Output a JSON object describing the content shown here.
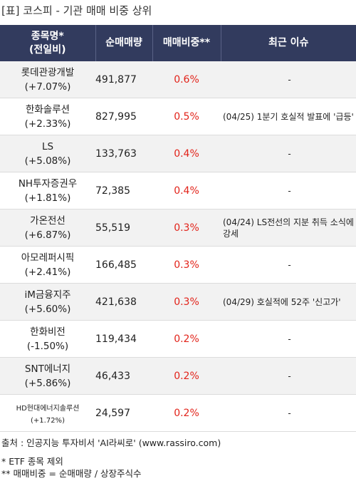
{
  "title": "[표] 코스피 - 기관 매매 비중 상위",
  "headers": {
    "name_line1": "종목명*",
    "name_line2": "(전일비)",
    "volume": "순매매량",
    "ratio": "매매비중**",
    "issue": "최근 이슈"
  },
  "rows": [
    {
      "name": "롯데관광개발",
      "change": "(+7.07%)",
      "volume": "491,877",
      "ratio": "0.6%",
      "issue": "-"
    },
    {
      "name": "한화솔루션",
      "change": "(+2.33%)",
      "volume": "827,995",
      "ratio": "0.5%",
      "issue": "(04/25) 1분기 호실적 발표에 '급등'"
    },
    {
      "name": "LS",
      "change": "(+5.08%)",
      "volume": "133,763",
      "ratio": "0.4%",
      "issue": "-"
    },
    {
      "name": "NH투자증권우",
      "change": "(+1.81%)",
      "volume": "72,385",
      "ratio": "0.4%",
      "issue": "-"
    },
    {
      "name": "가온전선",
      "change": "(+6.87%)",
      "volume": "55,519",
      "ratio": "0.3%",
      "issue": "(04/24) LS전선의 지분 취득 소식에 강세"
    },
    {
      "name": "아모레퍼시픽",
      "change": "(+2.41%)",
      "volume": "166,485",
      "ratio": "0.3%",
      "issue": "-"
    },
    {
      "name": "iM금융지주",
      "change": "(+5.60%)",
      "volume": "421,638",
      "ratio": "0.3%",
      "issue": "(04/29) 호실적에 52주 '신고가'"
    },
    {
      "name": "한화비전",
      "change": "(-1.50%)",
      "volume": "119,434",
      "ratio": "0.2%",
      "issue": "-"
    },
    {
      "name": "SNT에너지",
      "change": "(+5.86%)",
      "volume": "46,433",
      "ratio": "0.2%",
      "issue": "-"
    },
    {
      "name": "HD현대에너지솔루션",
      "change": "(+1.72%)",
      "volume": "24,597",
      "ratio": "0.2%",
      "issue": "-"
    }
  ],
  "footer": {
    "source": "출처 : 인공지능 투자비서 'AI라씨로' (www.rassiro.com)",
    "note1": "* ETF 종목 제외",
    "note2": "** 매매비중 = 순매매량 / 상장주식수"
  },
  "colors": {
    "header_bg": "#323b5e",
    "ratio_red": "#e2231a",
    "row_alt": "#f2f2f2"
  }
}
